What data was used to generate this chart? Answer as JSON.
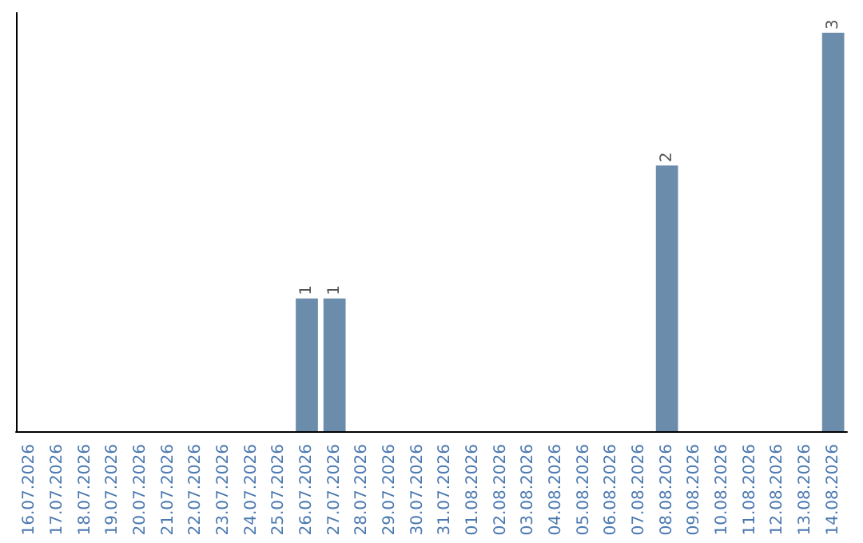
{
  "chart_data": {
    "type": "bar",
    "categories": [
      "16.07.2026",
      "17.07.2026",
      "18.07.2026",
      "19.07.2026",
      "20.07.2026",
      "21.07.2026",
      "22.07.2026",
      "23.07.2026",
      "24.07.2026",
      "25.07.2026",
      "26.07.2026",
      "27.07.2026",
      "28.07.2026",
      "29.07.2026",
      "30.07.2026",
      "31.07.2026",
      "01.08.2026",
      "02.08.2026",
      "03.08.2026",
      "04.08.2026",
      "05.08.2026",
      "06.08.2026",
      "07.08.2026",
      "08.08.2026",
      "09.08.2026",
      "10.08.2026",
      "11.08.2026",
      "12.08.2026",
      "13.08.2026",
      "14.08.2026"
    ],
    "values": [
      0,
      0,
      0,
      0,
      0,
      0,
      0,
      0,
      0,
      0,
      1,
      1,
      0,
      0,
      0,
      0,
      0,
      0,
      0,
      0,
      0,
      0,
      0,
      2,
      0,
      0,
      0,
      0,
      0,
      3
    ],
    "value_labels": [
      null,
      null,
      null,
      null,
      null,
      null,
      null,
      null,
      null,
      null,
      "1",
      "1",
      null,
      null,
      null,
      null,
      null,
      null,
      null,
      null,
      null,
      null,
      null,
      "2",
      null,
      null,
      null,
      null,
      null,
      "3"
    ],
    "color": "#6c8cac",
    "grid": false,
    "tick_labels": "x"
  }
}
